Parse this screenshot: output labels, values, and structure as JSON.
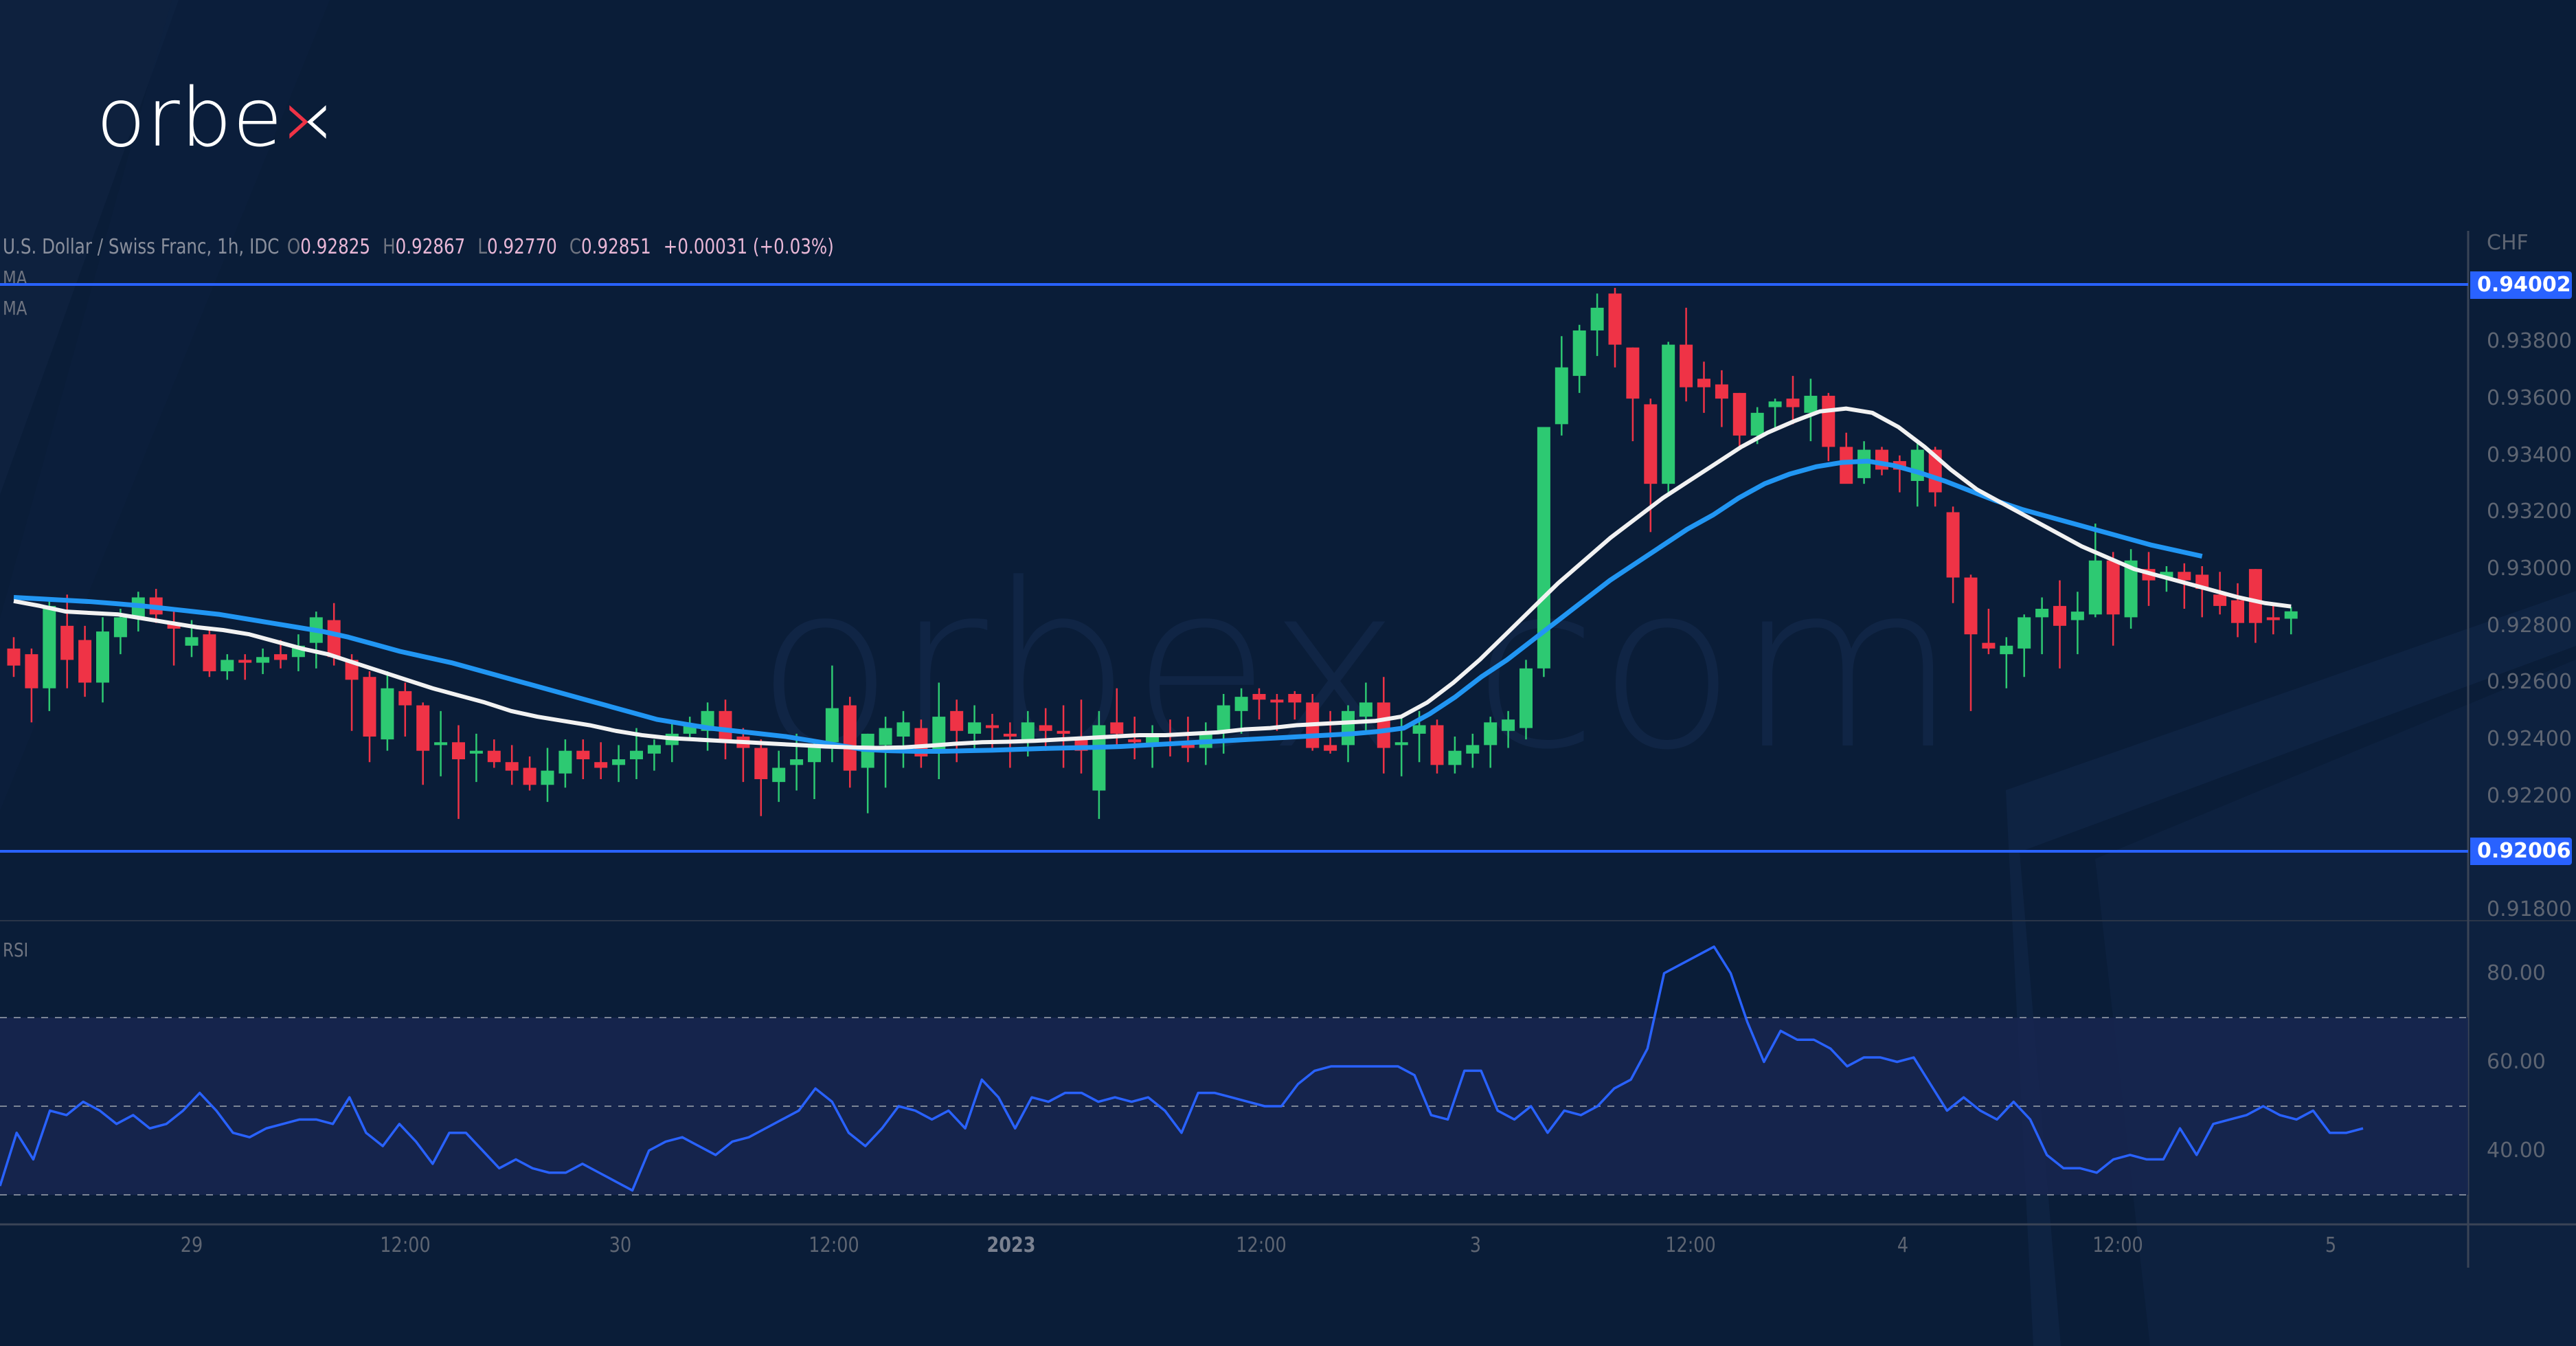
{
  "brand": {
    "logo_text_main": "orbe",
    "logo_text_accent": "x",
    "watermark": "orbex.com"
  },
  "legend": {
    "symbol": "U.S. Dollar / Swiss Franc, 1h, IDC",
    "o_key": "O",
    "o_val": "0.92825",
    "h_key": "H",
    "h_val": "0.92867",
    "l_key": "L",
    "l_val": "0.92770",
    "c_key": "C",
    "c_val": "0.92851",
    "change": "+0.00031 (+0.03%)",
    "ma1": "MA",
    "ma2": "MA"
  },
  "rsi_label": "RSI",
  "price_axis": {
    "currency": "CHF",
    "ticks": [
      "0.93800",
      "0.93600",
      "0.93400",
      "0.93200",
      "0.93000",
      "0.92800",
      "0.92600",
      "0.92400",
      "0.92200",
      "0.91800"
    ],
    "resistance_tag": "0.94002",
    "support_tag": "0.92006"
  },
  "rsi_axis": {
    "ticks": [
      "80.00",
      "60.00",
      "40.00"
    ]
  },
  "time_axis": [
    {
      "label": "29",
      "x": 279,
      "bold": false
    },
    {
      "label": "12:00",
      "x": 590,
      "bold": false
    },
    {
      "label": "30",
      "x": 903,
      "bold": false
    },
    {
      "label": "12:00",
      "x": 1214,
      "bold": false
    },
    {
      "label": "2023",
      "x": 1472,
      "bold": true
    },
    {
      "label": "12:00",
      "x": 1836,
      "bold": false
    },
    {
      "label": "3",
      "x": 2148,
      "bold": false
    },
    {
      "label": "12:00",
      "x": 2461,
      "bold": false
    },
    {
      "label": "4",
      "x": 2770,
      "bold": false
    },
    {
      "label": "12:00",
      "x": 3083,
      "bold": false
    },
    {
      "label": "5",
      "x": 3393,
      "bold": false
    }
  ],
  "colors": {
    "background": "#0a1d38",
    "up": "#2dc972",
    "down": "#ef3346",
    "hline": "#2962ff",
    "ma_fast": "#f2f2f2",
    "ma_slow": "#2196f3",
    "rsi_line": "#2962ff",
    "rsi_band": "#172650"
  },
  "chart_data": {
    "type": "candlestick",
    "title": "U.S. Dollar / Swiss Franc, 1h, IDC",
    "ylabel": "CHF",
    "ylim": [
      0.9172,
      0.9415
    ],
    "x_ticks": [
      "29",
      "12:00",
      "30",
      "12:00",
      "2023",
      "12:00",
      "3",
      "12:00",
      "4",
      "12:00",
      "5"
    ],
    "horizontal_levels": [
      0.94002,
      0.92006
    ],
    "last_bar": {
      "open": 0.92825,
      "high": 0.92867,
      "low": 0.9277,
      "close": 0.92851,
      "change": 0.00031,
      "change_pct": 0.03
    },
    "ohlc": [
      [
        0.9272,
        0.9276,
        0.9262,
        0.9266
      ],
      [
        0.927,
        0.9272,
        0.9246,
        0.9258
      ],
      [
        0.9258,
        0.929,
        0.925,
        0.9287
      ],
      [
        0.928,
        0.9291,
        0.9258,
        0.9268
      ],
      [
        0.9275,
        0.928,
        0.9255,
        0.926
      ],
      [
        0.926,
        0.9283,
        0.9253,
        0.9278
      ],
      [
        0.9276,
        0.9286,
        0.927,
        0.9283
      ],
      [
        0.9283,
        0.9292,
        0.9278,
        0.929
      ],
      [
        0.929,
        0.9293,
        0.9281,
        0.9284
      ],
      [
        0.9281,
        0.9285,
        0.9266,
        0.9279
      ],
      [
        0.9273,
        0.9282,
        0.9269,
        0.9276
      ],
      [
        0.9277,
        0.9279,
        0.9262,
        0.9264
      ],
      [
        0.9264,
        0.927,
        0.9261,
        0.9268
      ],
      [
        0.9268,
        0.927,
        0.9261,
        0.9267
      ],
      [
        0.9267,
        0.9272,
        0.9263,
        0.9269
      ],
      [
        0.927,
        0.9275,
        0.9265,
        0.9268
      ],
      [
        0.9269,
        0.9277,
        0.9264,
        0.9273
      ],
      [
        0.9274,
        0.9285,
        0.9265,
        0.9283
      ],
      [
        0.9282,
        0.9288,
        0.9266,
        0.9269
      ],
      [
        0.9268,
        0.927,
        0.9243,
        0.9261
      ],
      [
        0.9262,
        0.9264,
        0.9232,
        0.9241
      ],
      [
        0.924,
        0.9264,
        0.9236,
        0.9258
      ],
      [
        0.9257,
        0.926,
        0.9241,
        0.9252
      ],
      [
        0.9252,
        0.9253,
        0.9224,
        0.9236
      ],
      [
        0.9238,
        0.925,
        0.9227,
        0.9239
      ],
      [
        0.9239,
        0.9245,
        0.9212,
        0.9233
      ],
      [
        0.9235,
        0.9242,
        0.9225,
        0.9236
      ],
      [
        0.9236,
        0.924,
        0.923,
        0.9232
      ],
      [
        0.9232,
        0.9238,
        0.9224,
        0.9229
      ],
      [
        0.923,
        0.9234,
        0.9222,
        0.9224
      ],
      [
        0.9224,
        0.9237,
        0.9218,
        0.9229
      ],
      [
        0.9228,
        0.924,
        0.9223,
        0.9236
      ],
      [
        0.9236,
        0.924,
        0.9226,
        0.9233
      ],
      [
        0.9232,
        0.9239,
        0.9226,
        0.923
      ],
      [
        0.9231,
        0.9238,
        0.9225,
        0.9233
      ],
      [
        0.9233,
        0.9244,
        0.9226,
        0.9236
      ],
      [
        0.9235,
        0.924,
        0.9229,
        0.9238
      ],
      [
        0.9238,
        0.9246,
        0.9232,
        0.9242
      ],
      [
        0.9242,
        0.9248,
        0.924,
        0.9245
      ],
      [
        0.9243,
        0.9253,
        0.9236,
        0.925
      ],
      [
        0.925,
        0.9254,
        0.9233,
        0.924
      ],
      [
        0.9241,
        0.9244,
        0.9225,
        0.9237
      ],
      [
        0.9237,
        0.924,
        0.9213,
        0.9226
      ],
      [
        0.9225,
        0.9236,
        0.9218,
        0.923
      ],
      [
        0.9231,
        0.9242,
        0.9222,
        0.9233
      ],
      [
        0.9232,
        0.924,
        0.9219,
        0.9238
      ],
      [
        0.9239,
        0.9266,
        0.9232,
        0.9251
      ],
      [
        0.9252,
        0.9255,
        0.9223,
        0.9229
      ],
      [
        0.923,
        0.9242,
        0.9214,
        0.9242
      ],
      [
        0.9238,
        0.9248,
        0.9223,
        0.9244
      ],
      [
        0.9241,
        0.925,
        0.923,
        0.9246
      ],
      [
        0.9244,
        0.9247,
        0.923,
        0.9234
      ],
      [
        0.9236,
        0.926,
        0.9226,
        0.9248
      ],
      [
        0.925,
        0.9254,
        0.9232,
        0.9243
      ],
      [
        0.9242,
        0.9252,
        0.9236,
        0.9246
      ],
      [
        0.9245,
        0.9249,
        0.9237,
        0.9244
      ],
      [
        0.9242,
        0.9246,
        0.923,
        0.9241
      ],
      [
        0.924,
        0.925,
        0.9234,
        0.9246
      ],
      [
        0.9245,
        0.9251,
        0.9236,
        0.9243
      ],
      [
        0.9243,
        0.9252,
        0.923,
        0.9242
      ],
      [
        0.9241,
        0.9254,
        0.9228,
        0.9236
      ],
      [
        0.9222,
        0.925,
        0.9212,
        0.9245
      ],
      [
        0.9246,
        0.9258,
        0.9237,
        0.9242
      ],
      [
        0.924,
        0.9248,
        0.9233,
        0.9239
      ],
      [
        0.9238,
        0.9245,
        0.923,
        0.9241
      ],
      [
        0.9242,
        0.9247,
        0.9234,
        0.9241
      ],
      [
        0.9239,
        0.9248,
        0.9232,
        0.9237
      ],
      [
        0.9237,
        0.9246,
        0.9231,
        0.9242
      ],
      [
        0.9243,
        0.9256,
        0.9235,
        0.9252
      ],
      [
        0.925,
        0.9258,
        0.9242,
        0.9255
      ],
      [
        0.9256,
        0.9258,
        0.9247,
        0.9254
      ],
      [
        0.9254,
        0.9256,
        0.9243,
        0.9253
      ],
      [
        0.9256,
        0.9257,
        0.9247,
        0.9253
      ],
      [
        0.9253,
        0.9256,
        0.9236,
        0.9237
      ],
      [
        0.9238,
        0.925,
        0.9235,
        0.9236
      ],
      [
        0.9238,
        0.9252,
        0.9232,
        0.925
      ],
      [
        0.9248,
        0.926,
        0.9242,
        0.9253
      ],
      [
        0.9253,
        0.9262,
        0.9228,
        0.9237
      ],
      [
        0.9238,
        0.9248,
        0.9227,
        0.9239
      ],
      [
        0.9242,
        0.925,
        0.9232,
        0.9245
      ],
      [
        0.9245,
        0.9247,
        0.9228,
        0.9231
      ],
      [
        0.9231,
        0.9241,
        0.9228,
        0.9236
      ],
      [
        0.9235,
        0.9242,
        0.923,
        0.9238
      ],
      [
        0.9238,
        0.9248,
        0.923,
        0.9246
      ],
      [
        0.9243,
        0.925,
        0.9237,
        0.9247
      ],
      [
        0.9244,
        0.9268,
        0.924,
        0.9265
      ],
      [
        0.9265,
        0.935,
        0.9262,
        0.935
      ],
      [
        0.9351,
        0.9382,
        0.9347,
        0.9371
      ],
      [
        0.9368,
        0.9386,
        0.9362,
        0.9384
      ],
      [
        0.9384,
        0.9397,
        0.9375,
        0.9392
      ],
      [
        0.9397,
        0.9399,
        0.9371,
        0.9379
      ],
      [
        0.9378,
        0.9378,
        0.9345,
        0.936
      ],
      [
        0.9358,
        0.936,
        0.9313,
        0.933
      ],
      [
        0.933,
        0.938,
        0.9327,
        0.9379
      ],
      [
        0.9379,
        0.9392,
        0.9359,
        0.9364
      ],
      [
        0.9367,
        0.9373,
        0.9355,
        0.9364
      ],
      [
        0.9365,
        0.937,
        0.935,
        0.936
      ],
      [
        0.9362,
        0.9362,
        0.9343,
        0.9347
      ],
      [
        0.9347,
        0.9357,
        0.9344,
        0.9355
      ],
      [
        0.9357,
        0.936,
        0.9349,
        0.9359
      ],
      [
        0.936,
        0.9368,
        0.9351,
        0.9357
      ],
      [
        0.9355,
        0.9367,
        0.9345,
        0.9361
      ],
      [
        0.9361,
        0.9362,
        0.9338,
        0.9343
      ],
      [
        0.9343,
        0.9348,
        0.9333,
        0.933
      ],
      [
        0.9332,
        0.9345,
        0.933,
        0.9342
      ],
      [
        0.9342,
        0.9343,
        0.9333,
        0.9335
      ],
      [
        0.9338,
        0.934,
        0.9327,
        0.9335
      ],
      [
        0.9331,
        0.9345,
        0.9322,
        0.9342
      ],
      [
        0.9342,
        0.9343,
        0.9322,
        0.9327
      ],
      [
        0.932,
        0.9322,
        0.9288,
        0.9297
      ],
      [
        0.9297,
        0.9298,
        0.925,
        0.9277
      ],
      [
        0.9274,
        0.9286,
        0.927,
        0.9272
      ],
      [
        0.927,
        0.9276,
        0.9258,
        0.9273
      ],
      [
        0.9272,
        0.9284,
        0.9262,
        0.9283
      ],
      [
        0.9283,
        0.929,
        0.927,
        0.9286
      ],
      [
        0.9287,
        0.9296,
        0.9265,
        0.928
      ],
      [
        0.9282,
        0.9292,
        0.927,
        0.9285
      ],
      [
        0.9284,
        0.9316,
        0.9283,
        0.9303
      ],
      [
        0.9303,
        0.9306,
        0.9273,
        0.9284
      ],
      [
        0.9283,
        0.9307,
        0.9279,
        0.9303
      ],
      [
        0.93,
        0.9306,
        0.9287,
        0.9296
      ],
      [
        0.9297,
        0.9301,
        0.9292,
        0.9299
      ],
      [
        0.9299,
        0.9302,
        0.9286,
        0.9296
      ],
      [
        0.9298,
        0.9301,
        0.9283,
        0.9293
      ],
      [
        0.9291,
        0.9299,
        0.9284,
        0.9287
      ],
      [
        0.9289,
        0.9295,
        0.9276,
        0.9281
      ],
      [
        0.93,
        0.93,
        0.9274,
        0.9281
      ],
      [
        0.9283,
        0.9287,
        0.9277,
        0.9282
      ],
      [
        0.92825,
        0.92867,
        0.9277,
        0.92851
      ]
    ],
    "ma_fast": [
      0.92887,
      0.9287,
      0.9285,
      0.92845,
      0.9284,
      0.92825,
      0.9281,
      0.92795,
      0.92785,
      0.9277,
      0.92745,
      0.9272,
      0.927,
      0.9267,
      0.9264,
      0.9261,
      0.9258,
      0.92555,
      0.9253,
      0.925,
      0.9248,
      0.92465,
      0.9245,
      0.9243,
      0.92415,
      0.92405,
      0.924,
      0.92395,
      0.9239,
      0.92385,
      0.9238,
      0.92375,
      0.92372,
      0.9237,
      0.92372,
      0.92378,
      0.92385,
      0.9239,
      0.92392,
      0.92395,
      0.924,
      0.92405,
      0.9241,
      0.92415,
      0.92415,
      0.9242,
      0.92425,
      0.92435,
      0.9244,
      0.9245,
      0.92455,
      0.9246,
      0.92465,
      0.9248,
      0.9253,
      0.926,
      0.9268,
      0.9277,
      0.9286,
      0.9295,
      0.9303,
      0.9311,
      0.9318,
      0.9325,
      0.9331,
      0.9337,
      0.9343,
      0.9348,
      0.9352,
      0.93555,
      0.93565,
      0.9355,
      0.935,
      0.9343,
      0.9335,
      0.9328,
      0.9323,
      0.9318,
      0.9313,
      0.9308,
      0.9304,
      0.93,
      0.92975,
      0.9295,
      0.92925,
      0.929,
      0.9288,
      0.92868
    ],
    "ma_slow": [
      0.929,
      0.92895,
      0.9289,
      0.92885,
      0.92878,
      0.9287,
      0.9286,
      0.9285,
      0.9284,
      0.92825,
      0.9281,
      0.92795,
      0.9278,
      0.9276,
      0.92735,
      0.9271,
      0.9269,
      0.9267,
      0.92645,
      0.9262,
      0.92595,
      0.9257,
      0.92545,
      0.9252,
      0.92495,
      0.9247,
      0.92455,
      0.9244,
      0.9243,
      0.9242,
      0.9241,
      0.92395,
      0.9238,
      0.92365,
      0.9236,
      0.92358,
      0.92358,
      0.9236,
      0.92362,
      0.92365,
      0.92368,
      0.9237,
      0.92372,
      0.92375,
      0.9238,
      0.92385,
      0.9239,
      0.92395,
      0.924,
      0.92405,
      0.9241,
      0.92415,
      0.9242,
      0.92428,
      0.9244,
      0.9249,
      0.9255,
      0.9262,
      0.9268,
      0.9275,
      0.9282,
      0.9289,
      0.9296,
      0.9302,
      0.9308,
      0.9314,
      0.9319,
      0.9325,
      0.933,
      0.93335,
      0.9336,
      0.93375,
      0.9338,
      0.93365,
      0.9334,
      0.9331,
      0.93275,
      0.9324,
      0.9321,
      0.93185,
      0.9316,
      0.93135,
      0.9311,
      0.93085,
      0.93065,
      0.93045
    ],
    "rsi": [
      32,
      44,
      38,
      49,
      48,
      51,
      49,
      46,
      48,
      45,
      46,
      49,
      53,
      49,
      44,
      43,
      45,
      46,
      47,
      47,
      46,
      52,
      44,
      41,
      46,
      42,
      37,
      44,
      44,
      40,
      36,
      38,
      36,
      35,
      35,
      37,
      35,
      33,
      31,
      40,
      42,
      43,
      41,
      39,
      42,
      43,
      45,
      47,
      49,
      54,
      51,
      44,
      41,
      45,
      50,
      49,
      47,
      49,
      45,
      56,
      52,
      45,
      52,
      51,
      53,
      53,
      51,
      52,
      51,
      52,
      49,
      44,
      53,
      53,
      52,
      51,
      50,
      50,
      55,
      58,
      59,
      59,
      59,
      59,
      59,
      57,
      48,
      47,
      58,
      58,
      49,
      47,
      50,
      44,
      49,
      48,
      50,
      54,
      56,
      63,
      80,
      82,
      84,
      86,
      80,
      69,
      60,
      67,
      65,
      65,
      63,
      59,
      61,
      61,
      60,
      61,
      55,
      49,
      52,
      49,
      47,
      51,
      47,
      39,
      36,
      36,
      35,
      38,
      39,
      38,
      38,
      45,
      39,
      46,
      47,
      48,
      50,
      48,
      47,
      49,
      44,
      44,
      45
    ]
  }
}
